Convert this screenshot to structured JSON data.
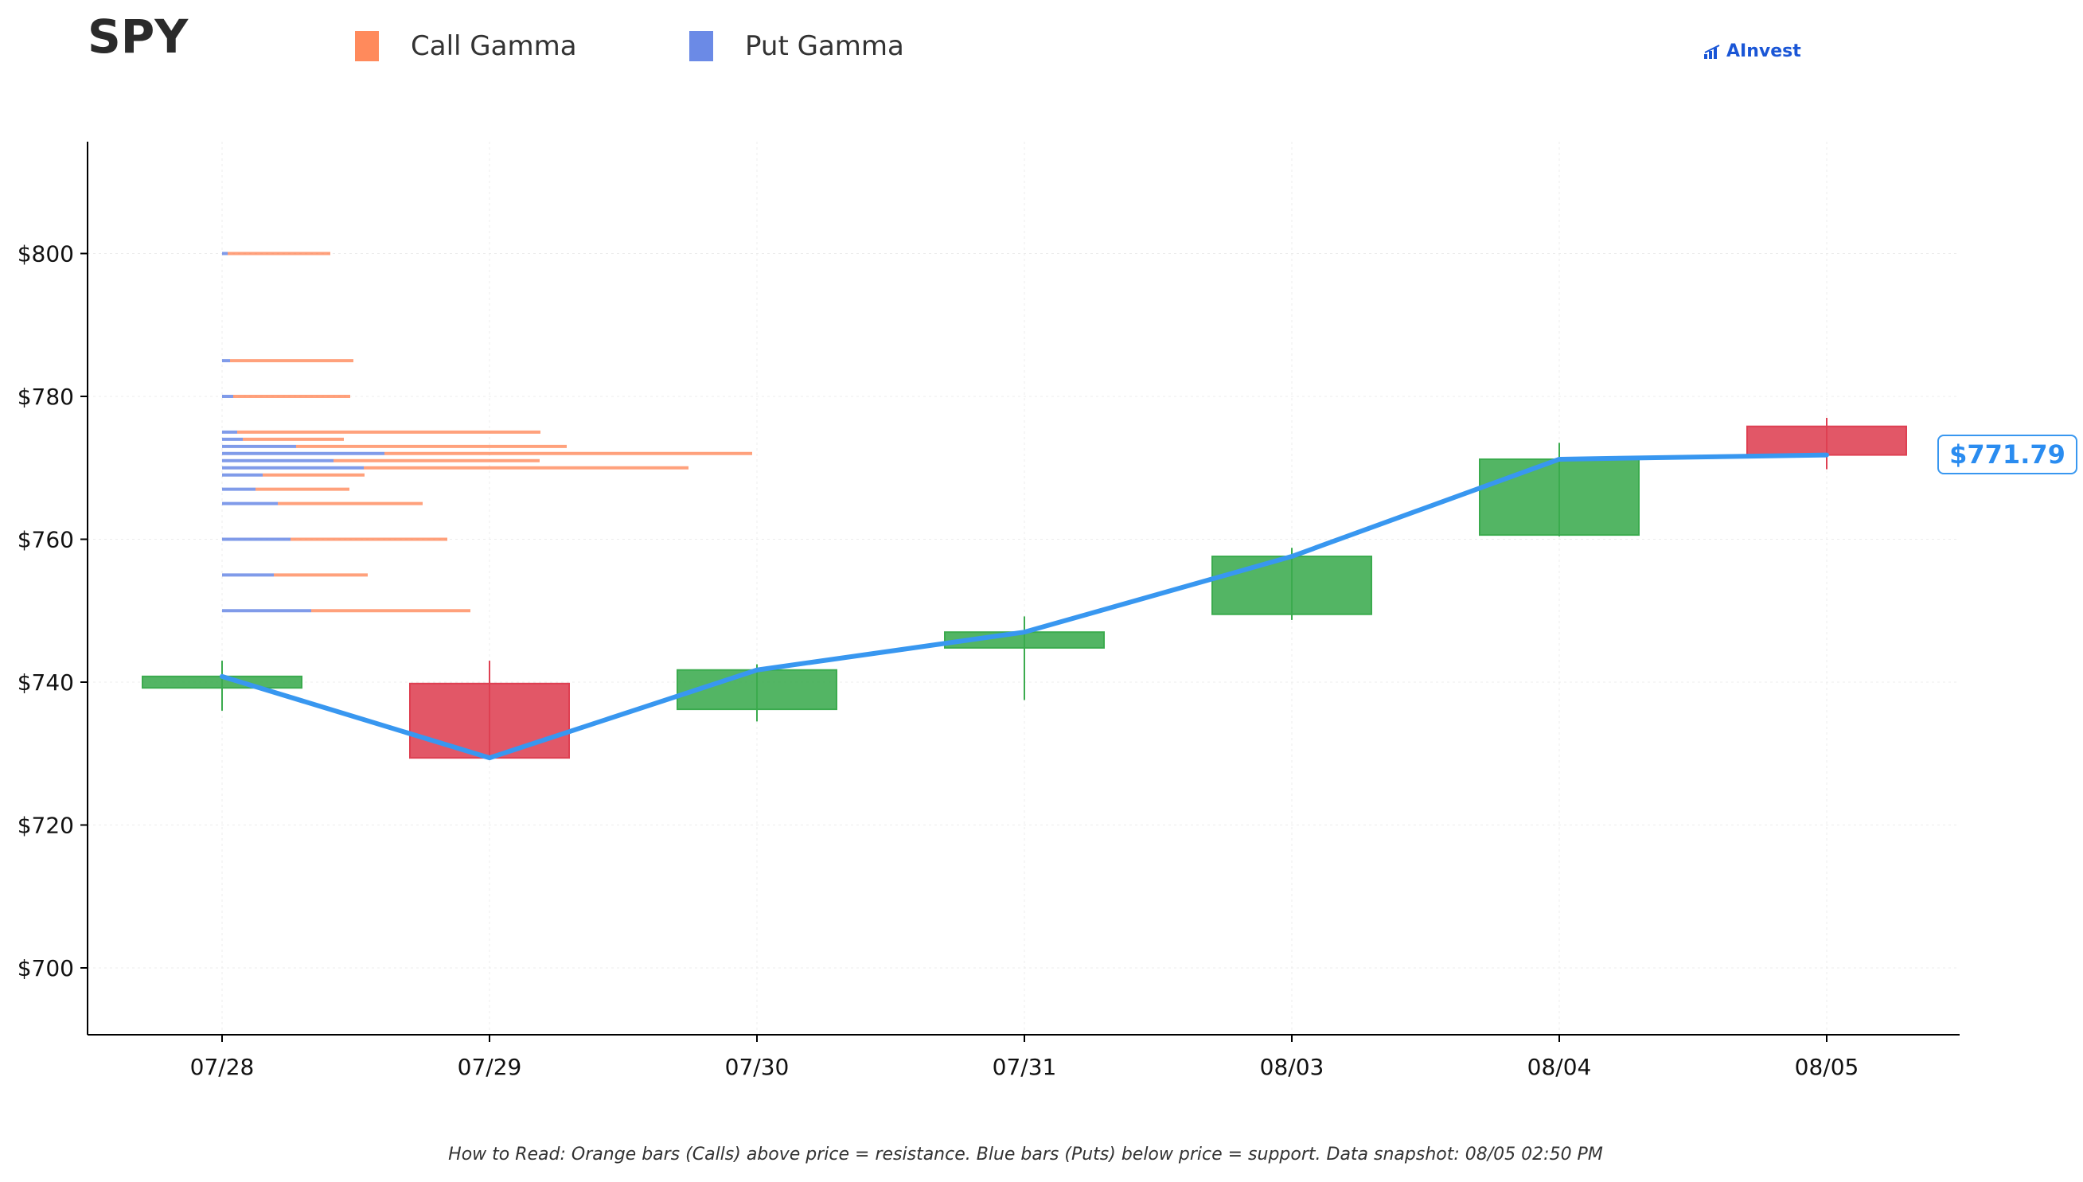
{
  "header": {
    "ticker": "SPY",
    "legend": [
      {
        "label": "Call Gamma",
        "color": "#ff8a5c"
      },
      {
        "label": "Put Gamma",
        "color": "#6b8ae6"
      }
    ],
    "brand": "AInvest"
  },
  "price_badge": "$771.79",
  "footnote": "How to Read: Orange bars (Calls) above price = resistance. Blue bars (Puts) below price = support. Data snapshot: 08/05 02:50 PM",
  "colors": {
    "up": "#3bab4e",
    "down": "#de4052",
    "line": "#3897f0",
    "call": "#ff8a5c",
    "put": "#6b8ae6"
  },
  "chart_data": {
    "type": "candlestick",
    "title": "SPY",
    "ylim": [
      690,
      815
    ],
    "y_ticks": [
      "$700",
      "$720",
      "$740",
      "$760",
      "$780",
      "$800"
    ],
    "y_tick_values": [
      700,
      720,
      740,
      760,
      780,
      800
    ],
    "categories": [
      "07/28",
      "07/29",
      "07/30",
      "07/31",
      "08/03",
      "08/04",
      "08/05"
    ],
    "candles": [
      {
        "date": "07/28",
        "open": 739.2,
        "high": 743.0,
        "low": 736.0,
        "close": 740.8
      },
      {
        "date": "07/29",
        "open": 739.8,
        "high": 743.0,
        "low": 729.3,
        "close": 729.4
      },
      {
        "date": "07/30",
        "open": 736.2,
        "high": 742.5,
        "low": 734.5,
        "close": 741.7
      },
      {
        "date": "07/31",
        "open": 744.8,
        "high": 749.2,
        "low": 737.5,
        "close": 747.0
      },
      {
        "date": "08/03",
        "open": 749.5,
        "high": 758.8,
        "low": 748.7,
        "close": 757.6
      },
      {
        "date": "08/04",
        "open": 760.6,
        "high": 773.5,
        "low": 760.4,
        "close": 771.2
      },
      {
        "date": "08/05",
        "open": 775.8,
        "high": 777.0,
        "low": 769.8,
        "close": 771.8
      }
    ],
    "close_line": [
      740.8,
      729.4,
      741.7,
      747.0,
      757.6,
      771.2,
      771.8
    ],
    "gamma_levels": [
      {
        "strike": 800,
        "put": 0.07,
        "call": 1.29
      },
      {
        "strike": 785,
        "put": 0.1,
        "call": 1.55
      },
      {
        "strike": 780,
        "put": 0.14,
        "call": 1.47
      },
      {
        "strike": 775,
        "put": 0.19,
        "call": 3.81
      },
      {
        "strike": 774,
        "put": 0.26,
        "call": 1.27
      },
      {
        "strike": 773,
        "put": 0.93,
        "call": 3.4
      },
      {
        "strike": 772,
        "put": 2.04,
        "call": 4.62
      },
      {
        "strike": 771,
        "put": 1.4,
        "call": 2.59
      },
      {
        "strike": 770,
        "put": 1.78,
        "call": 4.08
      },
      {
        "strike": 769,
        "put": 0.51,
        "call": 1.28
      },
      {
        "strike": 767,
        "put": 0.42,
        "call": 1.18
      },
      {
        "strike": 765,
        "put": 0.7,
        "call": 1.82
      },
      {
        "strike": 760,
        "put": 0.86,
        "call": 1.97
      },
      {
        "strike": 755,
        "put": 0.65,
        "call": 1.18
      },
      {
        "strike": 750,
        "put": 1.12,
        "call": 2.0
      }
    ],
    "grid": true,
    "legend_position": "top-left"
  }
}
